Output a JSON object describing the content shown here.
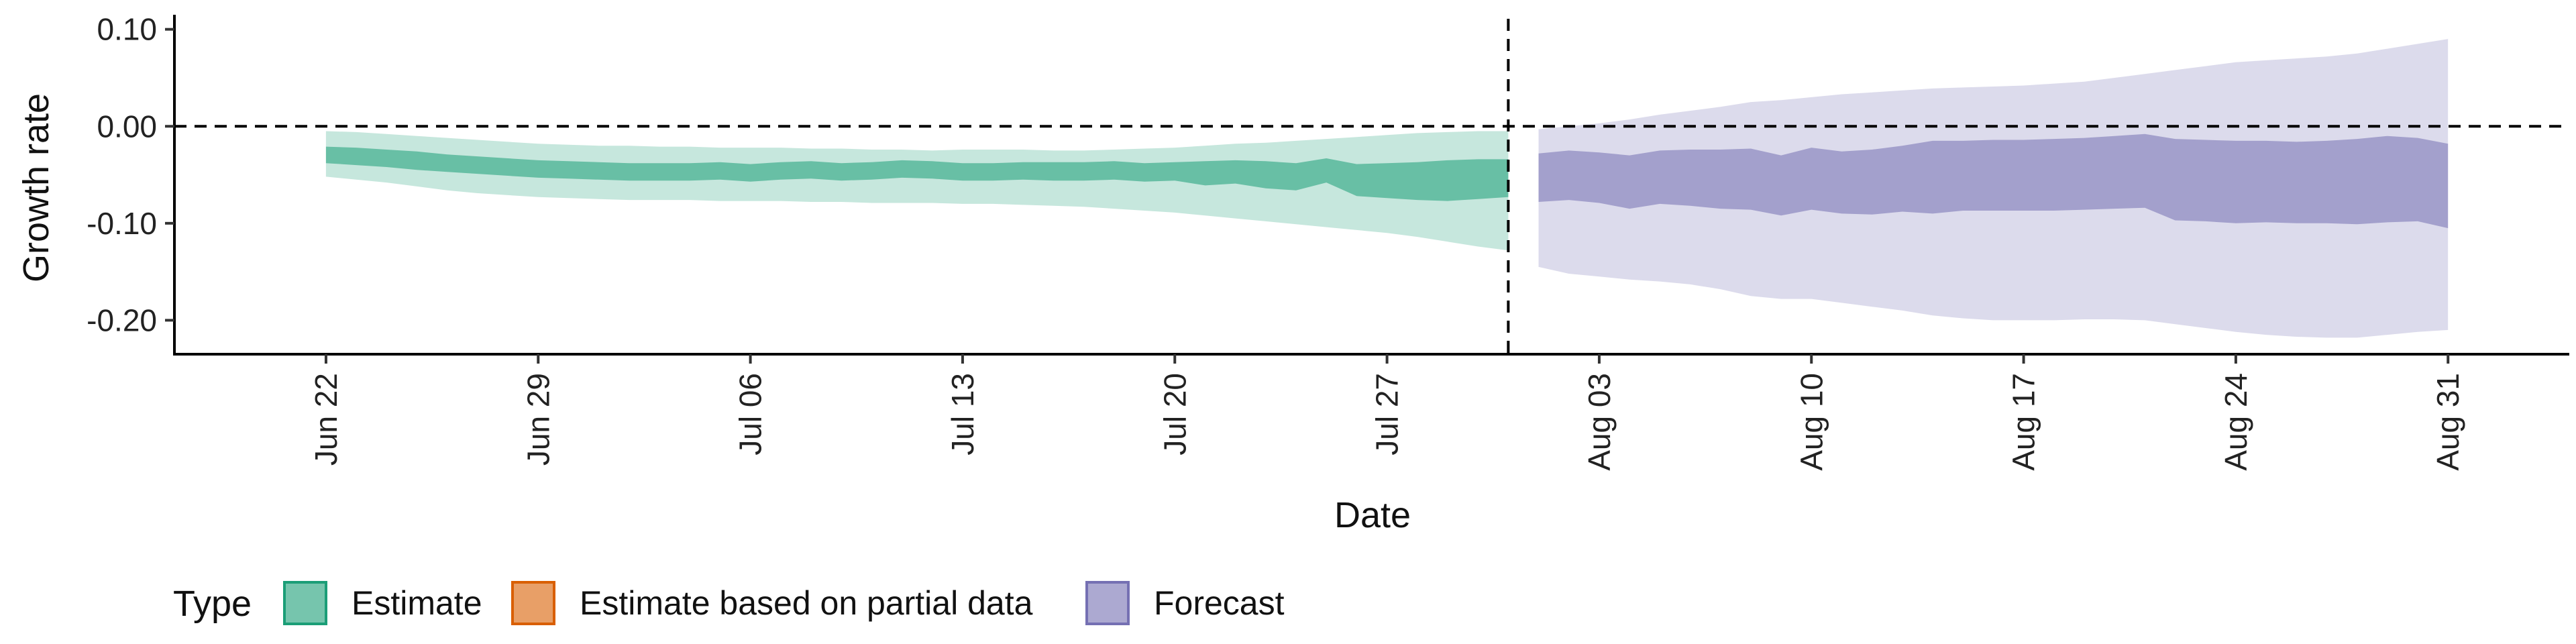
{
  "chart_data": {
    "type": "area",
    "title": "",
    "xlabel": "Date",
    "ylabel": "Growth rate",
    "ylim": [
      -0.235,
      0.115
    ],
    "xlim": [
      "2020-06-17",
      "2020-09-04"
    ],
    "x_ticks": [
      {
        "date": "2020-06-22",
        "label": "Jun 22"
      },
      {
        "date": "2020-06-29",
        "label": "Jun 29"
      },
      {
        "date": "2020-07-06",
        "label": "Jul 06"
      },
      {
        "date": "2020-07-13",
        "label": "Jul 13"
      },
      {
        "date": "2020-07-20",
        "label": "Jul 20"
      },
      {
        "date": "2020-07-27",
        "label": "Jul 27"
      },
      {
        "date": "2020-08-03",
        "label": "Aug 03"
      },
      {
        "date": "2020-08-10",
        "label": "Aug 10"
      },
      {
        "date": "2020-08-17",
        "label": "Aug 17"
      },
      {
        "date": "2020-08-24",
        "label": "Aug 24"
      },
      {
        "date": "2020-08-31",
        "label": "Aug 31"
      }
    ],
    "y_ticks": [
      {
        "value": 0.1,
        "label": "0.10"
      },
      {
        "value": 0.0,
        "label": "0.00"
      },
      {
        "value": -0.1,
        "label": "-0.10"
      },
      {
        "value": -0.2,
        "label": "-0.20"
      }
    ],
    "hline": 0.0,
    "vline": "2020-07-31",
    "grid": false,
    "legend": {
      "title": "Type",
      "placement": "bottom",
      "entries": [
        {
          "label": "Estimate",
          "color": "#1b9e77"
        },
        {
          "label": "Estimate based on partial data",
          "color": "#d95f02"
        },
        {
          "label": "Forecast",
          "color": "#7570b3"
        }
      ]
    },
    "series": [
      {
        "name": "Estimate",
        "color": "#1b9e77",
        "start": "2020-06-22",
        "outer_upper": [
          -0.005,
          -0.006,
          -0.008,
          -0.01,
          -0.012,
          -0.014,
          -0.016,
          -0.018,
          -0.019,
          -0.02,
          -0.02,
          -0.021,
          -0.021,
          -0.022,
          -0.022,
          -0.022,
          -0.023,
          -0.023,
          -0.024,
          -0.024,
          -0.025,
          -0.024,
          -0.024,
          -0.024,
          -0.025,
          -0.025,
          -0.024,
          -0.023,
          -0.022,
          -0.02,
          -0.018,
          -0.017,
          -0.015,
          -0.013,
          -0.011,
          -0.009,
          -0.007,
          -0.006,
          -0.005,
          -0.005
        ],
        "inner_upper": [
          -0.021,
          -0.022,
          -0.024,
          -0.026,
          -0.029,
          -0.031,
          -0.033,
          -0.035,
          -0.036,
          -0.037,
          -0.038,
          -0.038,
          -0.038,
          -0.037,
          -0.039,
          -0.037,
          -0.036,
          -0.038,
          -0.037,
          -0.035,
          -0.036,
          -0.038,
          -0.038,
          -0.037,
          -0.037,
          -0.037,
          -0.036,
          -0.038,
          -0.037,
          -0.036,
          -0.035,
          -0.036,
          -0.038,
          -0.033,
          -0.039,
          -0.038,
          -0.037,
          -0.035,
          -0.034,
          -0.034
        ],
        "inner_lower": [
          -0.038,
          -0.04,
          -0.042,
          -0.045,
          -0.047,
          -0.049,
          -0.051,
          -0.053,
          -0.054,
          -0.055,
          -0.056,
          -0.056,
          -0.056,
          -0.055,
          -0.057,
          -0.055,
          -0.054,
          -0.056,
          -0.055,
          -0.053,
          -0.054,
          -0.056,
          -0.056,
          -0.055,
          -0.056,
          -0.056,
          -0.055,
          -0.057,
          -0.056,
          -0.061,
          -0.059,
          -0.064,
          -0.066,
          -0.058,
          -0.072,
          -0.074,
          -0.076,
          -0.077,
          -0.075,
          -0.073
        ],
        "outer_lower": [
          -0.052,
          -0.055,
          -0.058,
          -0.062,
          -0.066,
          -0.069,
          -0.071,
          -0.073,
          -0.074,
          -0.075,
          -0.076,
          -0.076,
          -0.076,
          -0.077,
          -0.077,
          -0.077,
          -0.078,
          -0.078,
          -0.079,
          -0.079,
          -0.079,
          -0.08,
          -0.08,
          -0.081,
          -0.082,
          -0.083,
          -0.085,
          -0.087,
          -0.089,
          -0.092,
          -0.095,
          -0.098,
          -0.101,
          -0.104,
          -0.107,
          -0.11,
          -0.114,
          -0.119,
          -0.124,
          -0.128
        ]
      },
      {
        "name": "Forecast",
        "color": "#7570b3",
        "start": "2020-08-01",
        "outer_upper": [
          -0.003,
          0.0,
          0.003,
          0.007,
          0.012,
          0.016,
          0.02,
          0.025,
          0.027,
          0.03,
          0.033,
          0.035,
          0.037,
          0.039,
          0.04,
          0.041,
          0.042,
          0.044,
          0.046,
          0.05,
          0.054,
          0.058,
          0.062,
          0.066,
          0.068,
          0.07,
          0.072,
          0.075,
          0.08,
          0.085,
          0.09
        ],
        "inner_upper": [
          -0.028,
          -0.025,
          -0.027,
          -0.03,
          -0.025,
          -0.024,
          -0.024,
          -0.023,
          -0.03,
          -0.022,
          -0.026,
          -0.024,
          -0.02,
          -0.015,
          -0.015,
          -0.014,
          -0.014,
          -0.013,
          -0.012,
          -0.01,
          -0.008,
          -0.013,
          -0.014,
          -0.015,
          -0.015,
          -0.016,
          -0.015,
          -0.013,
          -0.01,
          -0.012,
          -0.018
        ],
        "inner_lower": [
          -0.078,
          -0.076,
          -0.079,
          -0.085,
          -0.08,
          -0.082,
          -0.085,
          -0.086,
          -0.092,
          -0.086,
          -0.09,
          -0.091,
          -0.088,
          -0.09,
          -0.087,
          -0.087,
          -0.087,
          -0.087,
          -0.086,
          -0.085,
          -0.084,
          -0.097,
          -0.098,
          -0.1,
          -0.099,
          -0.1,
          -0.1,
          -0.101,
          -0.099,
          -0.098,
          -0.105
        ],
        "outer_lower": [
          -0.145,
          -0.152,
          -0.155,
          -0.158,
          -0.16,
          -0.163,
          -0.168,
          -0.175,
          -0.178,
          -0.178,
          -0.182,
          -0.186,
          -0.19,
          -0.195,
          -0.198,
          -0.2,
          -0.2,
          -0.2,
          -0.199,
          -0.199,
          -0.2,
          -0.204,
          -0.208,
          -0.212,
          -0.215,
          -0.217,
          -0.218,
          -0.218,
          -0.215,
          -0.212,
          -0.21
        ]
      }
    ]
  }
}
